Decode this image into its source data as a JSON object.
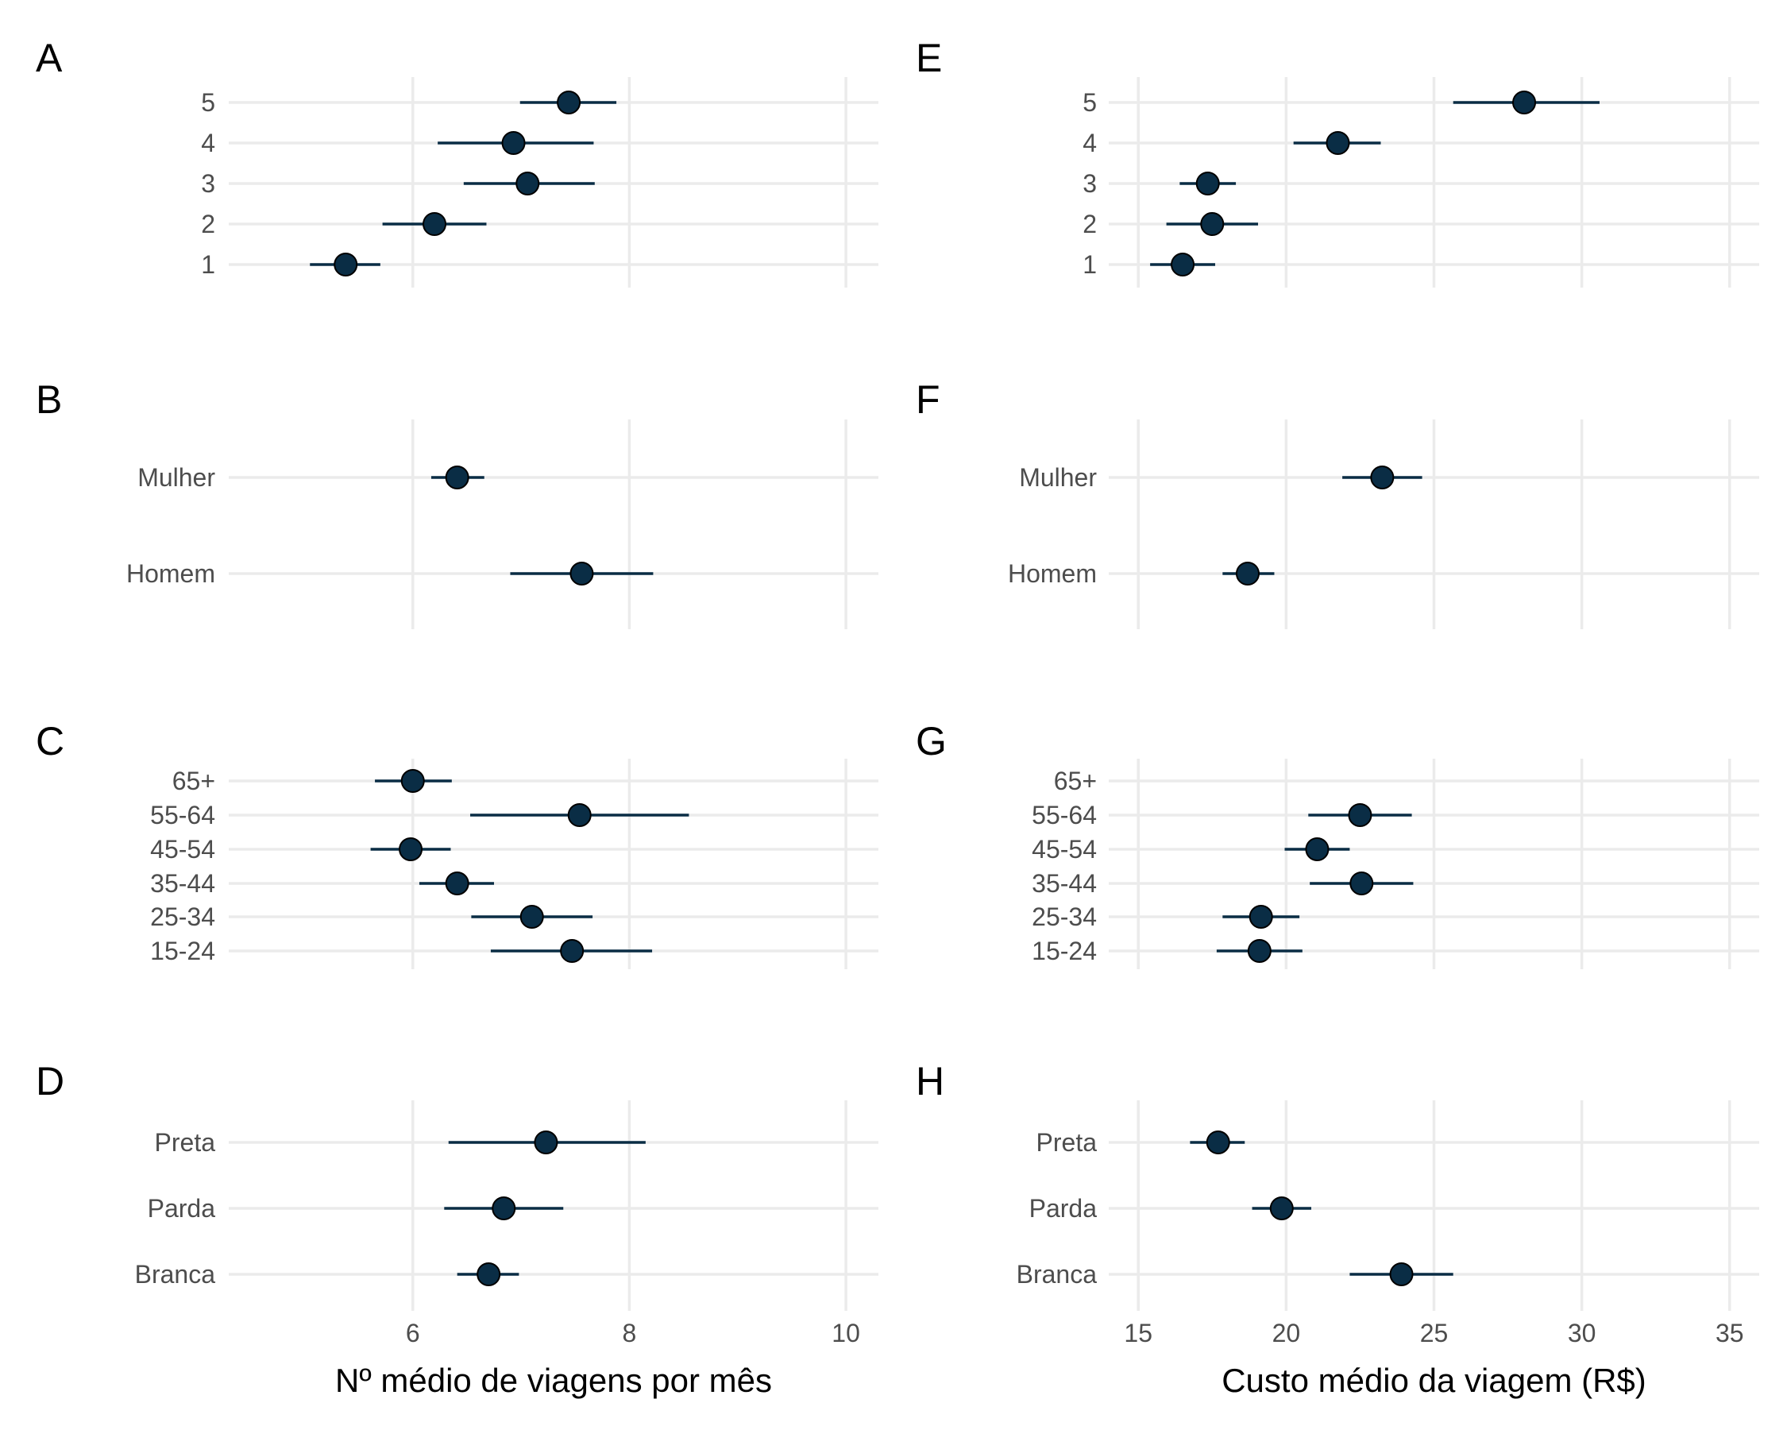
{
  "colors": {
    "point": "#0a2d45",
    "errorbar": "#0a2d45",
    "grid": "#ebebeb",
    "tick_text": "#4d4d4d"
  },
  "chart_data": [
    {
      "type": "scatter",
      "panel": "A",
      "xlabel": "",
      "ylabel": "",
      "xlim": [
        4.3,
        10.3
      ],
      "xticks": [
        6,
        8,
        10
      ],
      "show_x_tick_labels": false,
      "grid": true,
      "categories": [
        "1",
        "2",
        "3",
        "4",
        "5"
      ],
      "values": [
        5.38,
        6.2,
        7.06,
        6.93,
        7.44
      ],
      "lower": [
        5.05,
        5.72,
        6.47,
        6.23,
        6.99
      ],
      "upper": [
        5.7,
        6.68,
        7.68,
        7.67,
        7.88
      ]
    },
    {
      "type": "scatter",
      "panel": "B",
      "xlabel": "",
      "ylabel": "",
      "xlim": [
        4.3,
        10.3
      ],
      "xticks": [
        6,
        8,
        10
      ],
      "show_x_tick_labels": false,
      "grid": true,
      "categories": [
        "Homem",
        "Mulher"
      ],
      "values": [
        7.56,
        6.41
      ],
      "lower": [
        6.9,
        6.17
      ],
      "upper": [
        8.22,
        6.66
      ]
    },
    {
      "type": "scatter",
      "panel": "C",
      "xlabel": "",
      "ylabel": "",
      "xlim": [
        4.3,
        10.3
      ],
      "xticks": [
        6,
        8,
        10
      ],
      "show_x_tick_labels": false,
      "grid": true,
      "categories": [
        "15-24",
        "25-34",
        "35-44",
        "45-54",
        "55-64",
        "65+"
      ],
      "values": [
        7.47,
        7.1,
        6.41,
        5.98,
        7.54,
        6.0
      ],
      "lower": [
        6.72,
        6.54,
        6.06,
        5.61,
        6.53,
        5.65
      ],
      "upper": [
        8.21,
        7.66,
        6.75,
        6.35,
        8.55,
        6.36
      ]
    },
    {
      "type": "scatter",
      "panel": "D",
      "xlabel": "Nº médio de viagens por mês",
      "ylabel": "",
      "xlim": [
        4.3,
        10.3
      ],
      "xticks": [
        6,
        8,
        10
      ],
      "show_x_tick_labels": true,
      "grid": true,
      "categories": [
        "Branca",
        "Parda",
        "Preta"
      ],
      "values": [
        6.7,
        6.84,
        7.23
      ],
      "lower": [
        6.41,
        6.29,
        6.33
      ],
      "upper": [
        6.98,
        7.39,
        8.15
      ]
    },
    {
      "type": "scatter",
      "panel": "E",
      "xlabel": "",
      "ylabel": "",
      "xlim": [
        14.0,
        36.0
      ],
      "xticks": [
        15,
        20,
        25,
        30,
        35
      ],
      "show_x_tick_labels": false,
      "grid": true,
      "categories": [
        "1",
        "2",
        "3",
        "4",
        "5"
      ],
      "values": [
        16.5,
        17.5,
        17.35,
        21.75,
        28.05
      ],
      "lower": [
        15.4,
        15.95,
        16.4,
        20.25,
        25.65
      ],
      "upper": [
        17.6,
        19.05,
        18.3,
        23.2,
        30.6
      ]
    },
    {
      "type": "scatter",
      "panel": "F",
      "xlabel": "",
      "ylabel": "",
      "xlim": [
        14.0,
        36.0
      ],
      "xticks": [
        15,
        20,
        25,
        30,
        35
      ],
      "show_x_tick_labels": false,
      "grid": true,
      "categories": [
        "Homem",
        "Mulher"
      ],
      "values": [
        18.7,
        23.25
      ],
      "lower": [
        17.85,
        21.9
      ],
      "upper": [
        19.6,
        24.6
      ]
    },
    {
      "type": "scatter",
      "panel": "G",
      "xlabel": "",
      "ylabel": "",
      "xlim": [
        14.0,
        36.0
      ],
      "xticks": [
        15,
        20,
        25,
        30,
        35
      ],
      "show_x_tick_labels": false,
      "grid": true,
      "categories": [
        "15-24",
        "25-34",
        "35-44",
        "45-54",
        "55-64",
        "65+"
      ],
      "values": [
        19.1,
        19.15,
        22.55,
        21.05,
        22.5,
        null
      ],
      "lower": [
        17.65,
        17.85,
        20.8,
        19.95,
        20.75,
        null
      ],
      "upper": [
        20.55,
        20.45,
        24.3,
        22.15,
        24.25,
        null
      ]
    },
    {
      "type": "scatter",
      "panel": "H",
      "xlabel": "Custo médio da viagem (R$)",
      "ylabel": "",
      "xlim": [
        14.0,
        36.0
      ],
      "xticks": [
        15,
        20,
        25,
        30,
        35
      ],
      "show_x_tick_labels": true,
      "grid": true,
      "categories": [
        "Branca",
        "Parda",
        "Preta"
      ],
      "values": [
        23.9,
        19.85,
        17.7
      ],
      "lower": [
        22.15,
        18.85,
        16.75
      ],
      "upper": [
        25.65,
        20.85,
        18.6
      ]
    }
  ]
}
